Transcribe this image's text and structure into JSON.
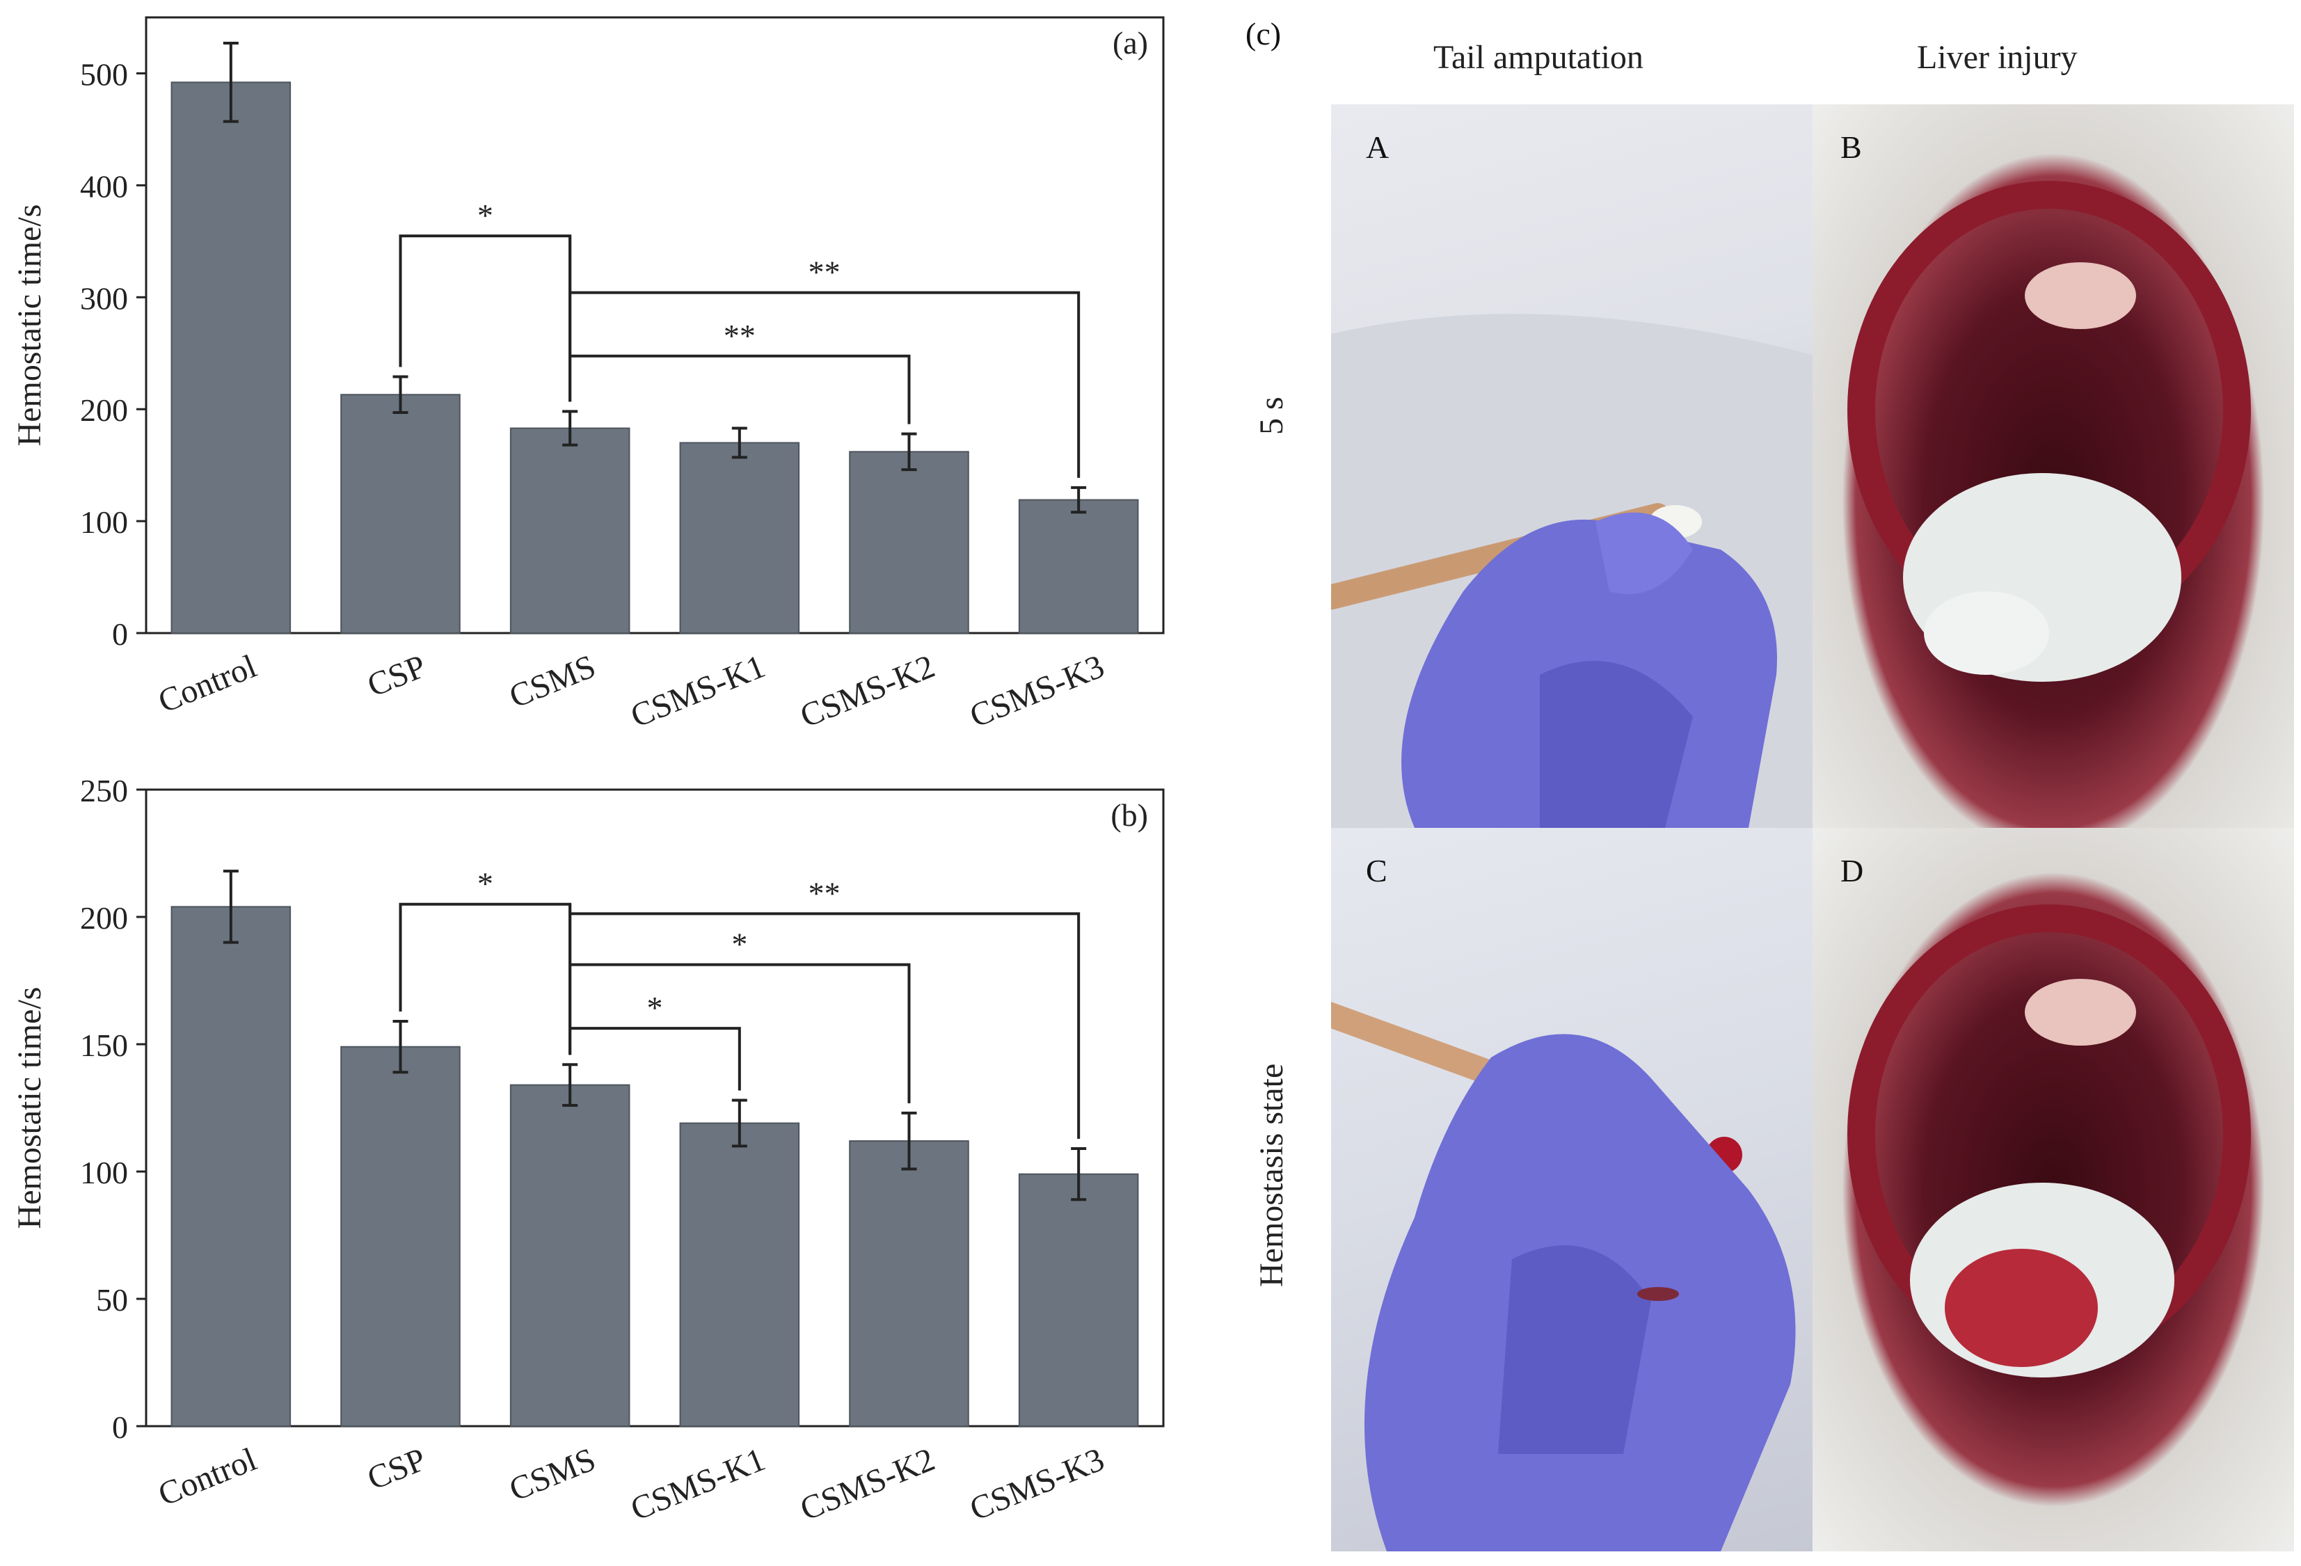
{
  "panel_labels": {
    "a": "(a)",
    "b": "(b)",
    "c": "(c)"
  },
  "photo_panel": {
    "columns": [
      "Tail amputation",
      "Liver injury"
    ],
    "rows": [
      "5 s",
      "Hemostasis state"
    ],
    "tiles": [
      "A",
      "B",
      "C",
      "D"
    ]
  },
  "colors": {
    "bar": "#6b747f",
    "axis": "#222222",
    "glove": "#6f6fd6",
    "tissue": "#8c1c2c"
  },
  "chart_data": [
    {
      "type": "bar",
      "label": "(a)",
      "categories": [
        "Control",
        "CSP",
        "CSMS",
        "CSMS-K1",
        "CSMS-K2",
        "CSMS-K3"
      ],
      "values": [
        492,
        213,
        183,
        170,
        162,
        119
      ],
      "errors": [
        35,
        16,
        15,
        13,
        16,
        11
      ],
      "ylabel": "Hemostatic time/s",
      "ylim": [
        0,
        550
      ],
      "yticks": [
        0,
        100,
        200,
        300,
        400,
        500
      ],
      "significance": [
        {
          "from": "CSP",
          "to": "CSMS",
          "label": "*"
        },
        {
          "from": "CSMS",
          "to": "CSMS-K3",
          "label": "**"
        },
        {
          "from": "CSMS",
          "to": "CSMS-K2",
          "label": "**"
        }
      ]
    },
    {
      "type": "bar",
      "label": "(b)",
      "categories": [
        "Control",
        "CSP",
        "CSMS",
        "CSMS-K1",
        "CSMS-K2",
        "CSMS-K3"
      ],
      "values": [
        204,
        149,
        134,
        119,
        112,
        99
      ],
      "errors": [
        14,
        10,
        8,
        9,
        11,
        10
      ],
      "ylabel": "Hemostatic time/s",
      "ylim": [
        0,
        250
      ],
      "yticks": [
        0,
        50,
        100,
        150,
        200,
        250
      ],
      "significance": [
        {
          "from": "CSP",
          "to": "CSMS",
          "label": "*"
        },
        {
          "from": "CSMS",
          "to": "CSMS-K3",
          "label": "**"
        },
        {
          "from": "CSMS",
          "to": "CSMS-K2",
          "label": "*"
        },
        {
          "from": "CSMS",
          "to": "CSMS-K1",
          "label": "*"
        }
      ]
    }
  ]
}
